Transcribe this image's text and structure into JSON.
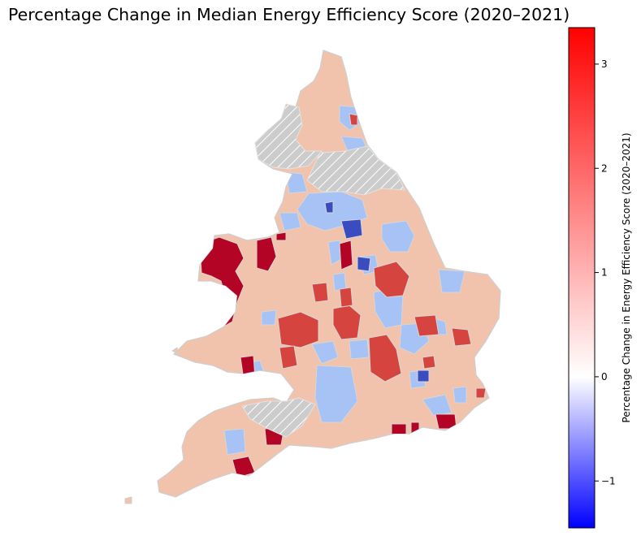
{
  "title": "Percentage Change in Median Energy Efficiency Score (2020–2021)",
  "colorbar": {
    "label": "Percentage Change in Energy Efficiency Score (2020–2021)",
    "range": [
      -1.45,
      3.35
    ],
    "ticks": [
      {
        "value": 3,
        "label": "3"
      },
      {
        "value": 2,
        "label": "2"
      },
      {
        "value": 1,
        "label": "1"
      },
      {
        "value": 0,
        "label": "0"
      },
      {
        "value": -1,
        "label": "−1"
      }
    ],
    "colormap": "bwr",
    "colors": {
      "low": "#0000ff",
      "mid": "#ffffff",
      "high": "#ff0000"
    }
  },
  "map": {
    "region": "England and Wales",
    "no_data_pattern": "grey diagonal hatch",
    "no_data_color": "#cccccc",
    "border_color": "#d9d9d9",
    "legend_colors": {
      "strong_increase": "#b40426",
      "increase": "#d6443f",
      "slight_increase": "#f1c3ac",
      "slight_decrease": "#a7c2f5",
      "strong_decrease": "#3a4cc0"
    }
  }
}
